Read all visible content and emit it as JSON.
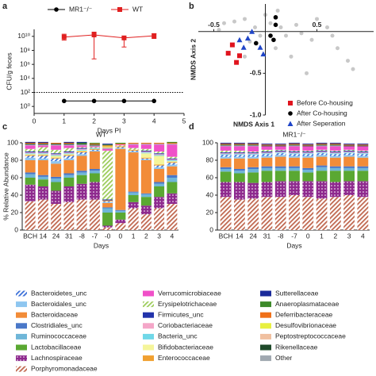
{
  "chart_data": [
    {
      "panel": "a",
      "type": "line",
      "y_label": "CFU/g feces",
      "x_label": "Days PI",
      "log_y": true,
      "x": [
        1,
        2,
        3,
        4
      ],
      "series": [
        {
          "name": "MR1⁻/⁻",
          "color": "#000000",
          "marker": "circle",
          "values": [
            6,
            6,
            6,
            6
          ]
        },
        {
          "name": "WT",
          "color": "#e02020",
          "marker": "square",
          "values": [
            8000000000.0,
            16000000000.0,
            6000000000.0,
            12000000000.0
          ],
          "error_low": [
            3000000000.0,
            6000000.0,
            300000000.0,
            5000000000.0
          ],
          "error_high": [
            20000000000.0,
            40000000000.0,
            10000000000.0,
            25000000000.0
          ]
        }
      ],
      "reference_line": 100,
      "xlim": [
        0,
        5
      ],
      "xticks": [
        0,
        1,
        2,
        3,
        4,
        5
      ],
      "ylim": [
        0.1,
        100000000000.0
      ],
      "yticks": [
        {
          "value": 1,
          "label": "10⁰"
        },
        {
          "value": 100,
          "label": "10²"
        },
        {
          "value": 10000,
          "label": "10⁴"
        },
        {
          "value": 1000000,
          "label": "10⁶"
        },
        {
          "value": 100000000,
          "label": "10⁸"
        },
        {
          "value": 10000000000,
          "label": "10¹⁰"
        }
      ]
    },
    {
      "panel": "b",
      "type": "scatter",
      "x_label": "NMDS Axis 1",
      "y_label": "NMDS Axis 2",
      "xlim": [
        -0.65,
        1.05
      ],
      "ylim": [
        -1.0,
        0.33
      ],
      "xticks": [
        -0.5,
        0.5
      ],
      "yticks": [
        -0.5,
        {
          "value": -1,
          "label": "-1.0"
        }
      ],
      "background_points": {
        "color": "#c8c8c8",
        "x": [
          -0.45,
          -0.4,
          -0.3,
          -0.2,
          -0.1,
          0.05,
          0.15,
          0.2,
          0.3,
          0.35,
          0.45,
          0.6,
          0.7,
          0.8,
          0.25,
          0.1,
          -0.05,
          -0.15,
          0.0,
          0.5,
          0.65,
          0.4,
          0.85,
          -0.2,
          0.12
        ],
        "y": [
          0.02,
          0.1,
          0.12,
          0.15,
          0.05,
          0.1,
          0.05,
          -0.05,
          0.08,
          -0.02,
          -0.1,
          0.05,
          -0.2,
          -0.35,
          -0.3,
          -0.2,
          -0.05,
          -0.12,
          0.2,
          0.15,
          -0.05,
          -0.5,
          -0.45,
          -0.3,
          0.25
        ]
      },
      "series": [
        {
          "name": "Before Co-housing",
          "color": "#e0141e",
          "marker": "square",
          "x": [
            -0.32,
            -0.36,
            -0.28,
            -0.25
          ],
          "y": [
            -0.16,
            -0.26,
            -0.37,
            -0.29
          ]
        },
        {
          "name": "After Co-housing",
          "color": "#000000",
          "marker": "circle",
          "x": [
            0.1,
            0.1,
            0.05,
            -0.09,
            0.08
          ],
          "y": [
            0.17,
            0.08,
            -0.05,
            -0.14,
            -0.1
          ]
        },
        {
          "name": "After Seperation",
          "color": "#1f45c8",
          "marker": "triangle",
          "x": [
            -0.25,
            -0.17,
            -0.21,
            -0.05,
            -0.02,
            -0.13
          ],
          "y": [
            -0.1,
            -0.08,
            -0.19,
            -0.19,
            -0.27,
            0.0
          ]
        }
      ]
    },
    {
      "panel": "c",
      "type": "stacked_bar",
      "title": "WT",
      "y_label": "% Relative Abundance",
      "x_label": "Days",
      "categories": [
        "BCH",
        "14",
        "24",
        "31",
        "-8",
        "-7",
        "-0",
        "0",
        "1",
        "2",
        "3",
        "4"
      ],
      "ylim": [
        0,
        100
      ],
      "yticks": [
        0,
        20,
        40,
        60,
        80,
        100
      ],
      "series": [
        {
          "name": "Bacteroidetes_unc",
          "color": "#3a6fd8",
          "pattern": "hatch",
          "values": [
            2,
            3,
            3,
            3,
            2,
            1,
            1,
            1,
            1,
            1,
            2,
            2
          ]
        },
        {
          "name": "Bacteroidales_unc",
          "color": "#8ec6f0",
          "values": [
            3,
            2,
            3,
            2,
            2,
            1,
            1,
            1,
            1,
            1,
            2,
            2
          ]
        },
        {
          "name": "Bacteroidaceae",
          "color": "#f28c38",
          "values": [
            14,
            17,
            15,
            15,
            17,
            20,
            5,
            70,
            45,
            38,
            15,
            10
          ]
        },
        {
          "name": "Clostridiales_unc",
          "color": "#4a78c8",
          "values": [
            2,
            2,
            2,
            2,
            2,
            2,
            1,
            1,
            1,
            1,
            2,
            3
          ]
        },
        {
          "name": "Ruminococcaceae",
          "color": "#6fb6d8",
          "values": [
            4,
            3,
            4,
            3,
            3,
            3,
            5,
            2,
            3,
            3,
            3,
            5
          ]
        },
        {
          "name": "Lactobacillaceae",
          "color": "#5aa832",
          "values": [
            8,
            8,
            10,
            10,
            10,
            10,
            15,
            8,
            8,
            10,
            12,
            13
          ]
        },
        {
          "name": "Lachnospiraceae",
          "color": "#8e2a8e",
          "pattern": "dots",
          "values": [
            19,
            15,
            15,
            18,
            18,
            20,
            2,
            4,
            7,
            10,
            13,
            12
          ]
        },
        {
          "name": "Porphyromonadaceae",
          "color": "#c06850",
          "pattern": "hatch",
          "values": [
            33,
            35,
            30,
            32,
            35,
            35,
            3,
            8,
            25,
            18,
            25,
            30
          ]
        },
        {
          "name": "Verrucomicrobiaceae",
          "color": "#f050c8",
          "values": [
            4,
            2,
            5,
            3,
            2,
            1,
            2,
            1,
            4,
            5,
            8,
            14
          ]
        },
        {
          "name": "Erysipelotrichaceae",
          "color": "#9ccc5a",
          "pattern": "hatch",
          "values": [
            3,
            5,
            4,
            4,
            1,
            1,
            56,
            1,
            2,
            2,
            2,
            2
          ]
        },
        {
          "name": "Firmicutes_unc",
          "color": "#2233aa",
          "values": [
            1,
            1,
            1,
            1,
            1,
            0,
            1,
            0,
            0,
            1,
            1,
            1
          ]
        },
        {
          "name": "Coriobacteriaceae",
          "color": "#f4a6c8",
          "values": [
            1,
            1,
            1,
            1,
            1,
            0,
            0,
            0,
            0,
            1,
            1,
            1
          ]
        },
        {
          "name": "Bacteria_unc",
          "color": "#70d8e8",
          "values": [
            1,
            1,
            1,
            1,
            1,
            1,
            0,
            0,
            0,
            1,
            1,
            1
          ]
        },
        {
          "name": "Bifidobacteriaceae",
          "color": "#f5f59a",
          "values": [
            1,
            1,
            2,
            1,
            1,
            0,
            0,
            0,
            0,
            5,
            10,
            1
          ]
        },
        {
          "name": "Enterococcaceae",
          "color": "#f0a030",
          "values": [
            1,
            1,
            1,
            1,
            1,
            1,
            1,
            1,
            1,
            1,
            1,
            1
          ]
        },
        {
          "name": "Sutterellaceae",
          "color": "#1a2a9a",
          "values": [
            1,
            1,
            0,
            1,
            1,
            0,
            1,
            0,
            0,
            0,
            0,
            0
          ]
        },
        {
          "name": "Anaeroplasmataceae",
          "color": "#3d8a2a",
          "values": [
            0,
            0,
            0,
            0,
            1,
            1,
            1,
            1,
            0,
            0,
            0,
            1
          ]
        },
        {
          "name": "Deferribacteraceae",
          "color": "#f07018",
          "values": [
            1,
            1,
            1,
            1,
            0,
            1,
            1,
            1,
            1,
            1,
            1,
            1
          ]
        },
        {
          "name": "Desulfovibrionaceae",
          "color": "#e8f040",
          "values": [
            0,
            0,
            0,
            0,
            0,
            0,
            1,
            0,
            0,
            0,
            0,
            0
          ]
        },
        {
          "name": "Peptostreptococcaceae",
          "color": "#f0c0a0",
          "values": [
            0,
            0,
            0,
            0,
            0,
            0,
            1,
            0,
            0,
            0,
            0,
            0
          ]
        },
        {
          "name": "Rikenellaceae",
          "color": "#1f4a2a",
          "values": [
            1,
            1,
            1,
            1,
            1,
            1,
            0,
            0,
            0,
            0,
            0,
            0
          ]
        },
        {
          "name": "Other",
          "color": "#a0a8b0",
          "values": [
            1,
            1,
            1,
            1,
            1,
            1,
            1,
            0,
            1,
            1,
            1,
            1
          ]
        }
      ]
    },
    {
      "panel": "d",
      "type": "stacked_bar",
      "title": "MR1⁻/⁻",
      "x_label": "Days",
      "categories": [
        "BCH",
        "14",
        "24",
        "31",
        "-8",
        "-7",
        "0",
        "1",
        "2",
        "3",
        "4"
      ],
      "ylim": [
        0,
        100
      ],
      "yticks": [
        0,
        20,
        40,
        60,
        80,
        100
      ],
      "series": [
        {
          "values": [
            2,
            2,
            2,
            2,
            2,
            2,
            2,
            2,
            2,
            2,
            2
          ]
        },
        {
          "values": [
            2,
            2,
            2,
            2,
            2,
            2,
            2,
            2,
            2,
            2,
            2
          ]
        },
        {
          "values": [
            10,
            12,
            10,
            10,
            11,
            10,
            12,
            10,
            10,
            11,
            10
          ]
        },
        {
          "values": [
            2,
            2,
            2,
            2,
            2,
            2,
            2,
            2,
            2,
            2,
            2
          ]
        },
        {
          "values": [
            3,
            3,
            4,
            3,
            3,
            3,
            3,
            4,
            3,
            3,
            3
          ]
        },
        {
          "values": [
            12,
            10,
            12,
            13,
            12,
            12,
            10,
            12,
            13,
            12,
            12
          ]
        },
        {
          "values": [
            17,
            20,
            18,
            17,
            18,
            16,
            18,
            20,
            17,
            16,
            18
          ]
        },
        {
          "values": [
            38,
            35,
            36,
            38,
            38,
            40,
            38,
            36,
            38,
            40,
            38
          ]
        },
        {
          "values": [
            5,
            5,
            6,
            4,
            4,
            5,
            5,
            4,
            5,
            4,
            5
          ]
        },
        {
          "values": [
            2,
            2,
            1,
            2,
            1,
            1,
            1,
            1,
            1,
            1,
            1
          ]
        },
        {
          "values": [
            1,
            1,
            1,
            1,
            1,
            1,
            1,
            1,
            1,
            1,
            1
          ]
        },
        {
          "values": [
            1,
            1,
            1,
            1,
            1,
            1,
            1,
            1,
            1,
            1,
            1
          ]
        },
        {
          "values": [
            1,
            1,
            1,
            1,
            1,
            1,
            1,
            1,
            1,
            1,
            1
          ]
        },
        {
          "values": [
            0,
            0,
            0,
            0,
            0,
            0,
            0,
            0,
            0,
            0,
            0
          ]
        },
        {
          "values": [
            0,
            0,
            0,
            0,
            0,
            0,
            0,
            0,
            0,
            0,
            0
          ]
        },
        {
          "values": [
            1,
            1,
            1,
            1,
            1,
            1,
            1,
            1,
            1,
            1,
            1
          ]
        },
        {
          "values": [
            0,
            0,
            0,
            0,
            0,
            0,
            0,
            0,
            0,
            0,
            0
          ]
        },
        {
          "values": [
            1,
            1,
            1,
            1,
            1,
            1,
            1,
            1,
            1,
            1,
            1
          ]
        },
        {
          "values": [
            0,
            0,
            0,
            0,
            0,
            0,
            0,
            0,
            0,
            0,
            0
          ]
        },
        {
          "values": [
            0,
            0,
            0,
            0,
            0,
            0,
            0,
            0,
            0,
            0,
            0
          ]
        },
        {
          "values": [
            1,
            1,
            1,
            1,
            1,
            1,
            1,
            1,
            1,
            1,
            1
          ]
        },
        {
          "values": [
            1,
            1,
            1,
            0,
            0,
            1,
            0,
            1,
            1,
            0,
            0
          ]
        }
      ]
    }
  ]
}
